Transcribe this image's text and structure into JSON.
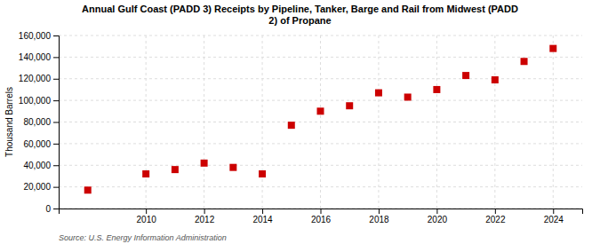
{
  "chart_data": {
    "type": "scatter",
    "title": "Annual Gulf Coast (PADD 3) Receipts by Pipeline, Tanker, Barge and Rail from Midwest (PADD\n2) of Propane",
    "ylabel": "Thousand Barrels",
    "source": "Source: U.S. Energy Information Administration",
    "x": [
      2008,
      2010,
      2011,
      2012,
      2013,
      2014,
      2015,
      2016,
      2017,
      2018,
      2019,
      2020,
      2021,
      2022,
      2023,
      2024
    ],
    "values": [
      17000,
      32000,
      36000,
      42000,
      38000,
      32000,
      77000,
      90000,
      95000,
      107000,
      103000,
      110000,
      123000,
      119000,
      136000,
      148000
    ],
    "color": "#cc0000",
    "marker": "square",
    "xlim": [
      2007,
      2025
    ],
    "xticks": [
      2010,
      2012,
      2014,
      2016,
      2018,
      2020,
      2022,
      2024
    ],
    "ylim": [
      0,
      160000
    ],
    "yticks": [
      0,
      {
        "value": 20000,
        "label": "20,000"
      },
      {
        "value": 40000,
        "label": "40,000"
      },
      {
        "value": 60000,
        "label": "60,000"
      },
      {
        "value": 80000,
        "label": "80,000"
      },
      {
        "value": 100000,
        "label": "100,000"
      },
      {
        "value": 120000,
        "label": "120,000"
      },
      {
        "value": 140000,
        "label": "140,000"
      },
      {
        "value": 160000,
        "label": "160,000"
      }
    ],
    "grid": true
  }
}
